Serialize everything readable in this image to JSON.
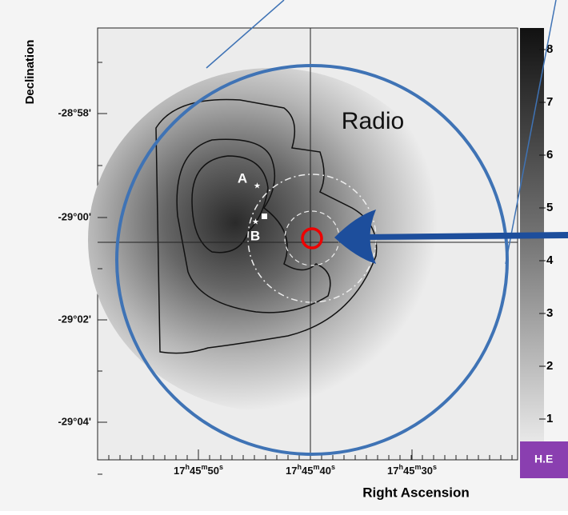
{
  "axes": {
    "y_label": "Declination",
    "x_label": "Right Ascension",
    "y_ticks": [
      "-28°58'",
      "-29°00'",
      "-29°02'",
      "-29°04'"
    ],
    "x_ticks": [
      {
        "h": "17",
        "m": "45",
        "s": "50",
        "hu": "h",
        "mu": "m",
        "su": "s"
      },
      {
        "h": "17",
        "m": "45",
        "s": "40",
        "hu": "h",
        "mu": "m",
        "su": "s"
      },
      {
        "h": "17",
        "m": "45",
        "s": "30",
        "hu": "h",
        "mu": "m",
        "su": "s"
      }
    ]
  },
  "colorbar": {
    "labels": [
      "8",
      "7",
      "6",
      "5",
      "4",
      "3",
      "2",
      "1"
    ]
  },
  "annotations": {
    "radio": "Radio",
    "source_a": "A",
    "source_b": "B",
    "badge": "H.E"
  }
}
